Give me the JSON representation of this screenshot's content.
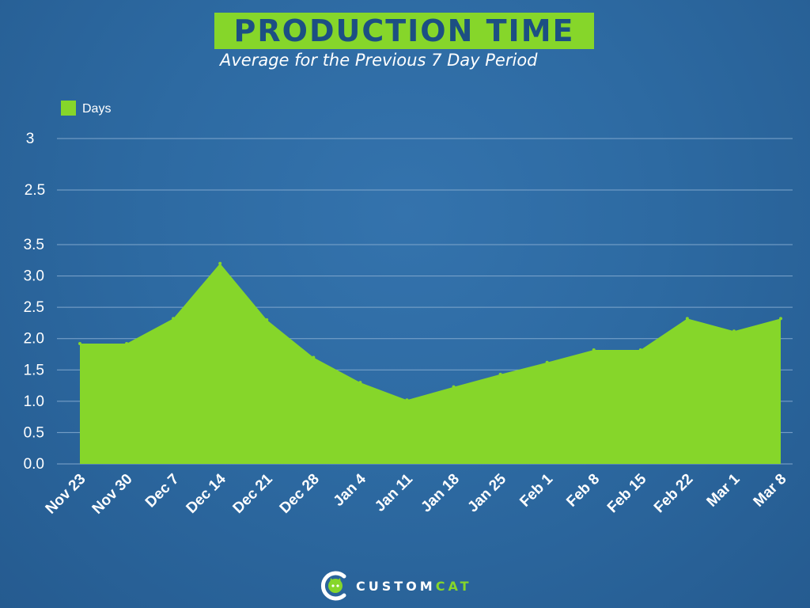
{
  "header": {
    "title": "PRODUCTION TIME",
    "subtitle": "Average for the Previous 7 Day Period"
  },
  "colors": {
    "accent": "#86d62a",
    "background": "#2d6aa2",
    "title_text": "#1c4f83",
    "grid": "#7fa6cc"
  },
  "extra_axis_ticks": [
    "3",
    "2.5"
  ],
  "chart_data": {
    "type": "area",
    "title": "",
    "xlabel": "",
    "ylabel": "",
    "legend_position": "top-left",
    "grid": true,
    "ylim": [
      0,
      3.5
    ],
    "yticks": [
      "0.0",
      "0.5",
      "1.0",
      "1.5",
      "2.0",
      "2.5",
      "3.0",
      "3.5"
    ],
    "categories": [
      "Nov 23",
      "Nov 30",
      "Dec 7",
      "Dec 14",
      "Dec 21",
      "Dec 28",
      "Jan 4",
      "Jan 11",
      "Jan 18",
      "Jan 25",
      "Feb 1",
      "Feb 8",
      "Feb 15",
      "Feb 22",
      "Mar 1",
      "Mar 8"
    ],
    "series": [
      {
        "name": "Days",
        "color": "#86d62a",
        "values": [
          1.92,
          1.92,
          2.32,
          3.2,
          2.3,
          1.7,
          1.3,
          1.02,
          1.23,
          1.43,
          1.62,
          1.82,
          1.82,
          2.32,
          2.12,
          2.32
        ]
      }
    ]
  },
  "logo": {
    "brand_part1": "CUSTOM",
    "brand_part2": "CAT",
    "icon": "cat-head-icon"
  }
}
